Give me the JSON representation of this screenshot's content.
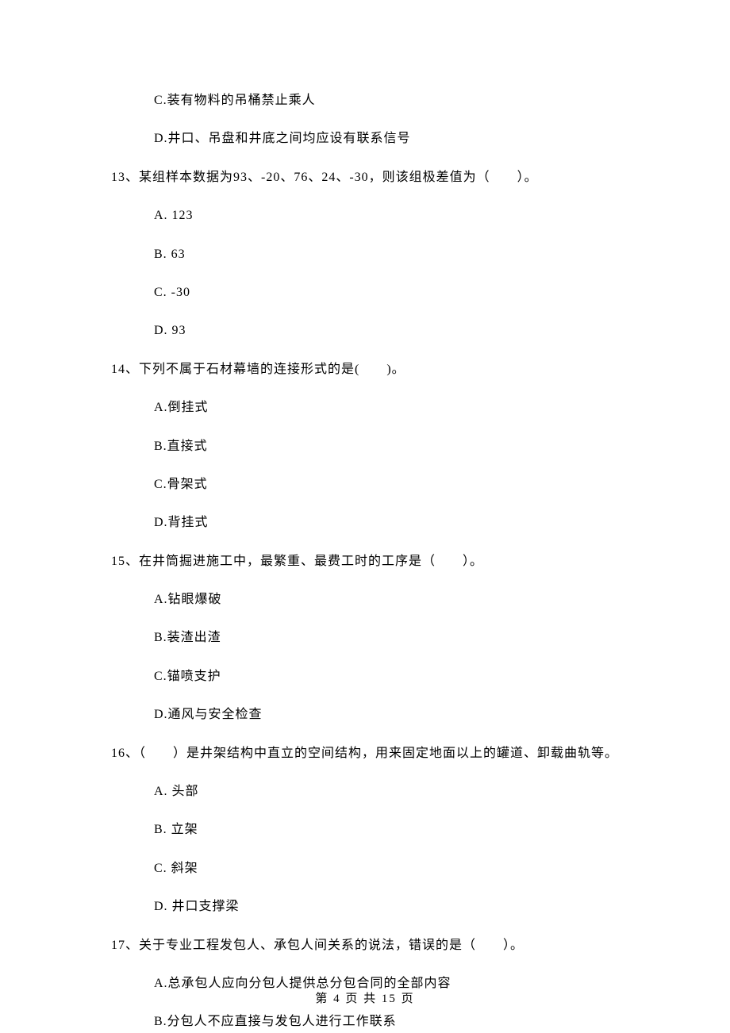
{
  "orphan_options": [
    "C.装有物料的吊桶禁止乘人",
    "D.井口、吊盘和井底之间均应设有联系信号"
  ],
  "questions": [
    {
      "number": "13、",
      "stem": "某组样本数据为93、-20、76、24、-30，则该组极差值为（　　）。",
      "options": [
        "A.  123",
        "B.  63",
        "C.  -30",
        "D.  93"
      ]
    },
    {
      "number": "14、",
      "stem": "下列不属于石材幕墙的连接形式的是(　　)。",
      "options": [
        "A.倒挂式",
        "B.直接式",
        "C.骨架式",
        "D.背挂式"
      ]
    },
    {
      "number": "15、",
      "stem": "在井筒掘进施工中，最繁重、最费工时的工序是（　　）。",
      "options": [
        "A.钻眼爆破",
        "B.装渣出渣",
        "C.锚喷支护",
        "D.通风与安全检查"
      ]
    },
    {
      "number": "16、",
      "stem": "（　　）是井架结构中直立的空间结构，用来固定地面以上的罐道、卸载曲轨等。",
      "options": [
        "A.  头部",
        "B.  立架",
        "C.  斜架",
        "D.  井口支撑梁"
      ]
    },
    {
      "number": "17、",
      "stem": "关于专业工程发包人、承包人间关系的说法，错误的是（　　）。",
      "options": [
        "A.总承包人应向分包人提供总分包合同的全部内容",
        "B.分包人不应直接与发包人进行工作联系"
      ]
    }
  ],
  "footer": "第 4 页 共 15 页"
}
